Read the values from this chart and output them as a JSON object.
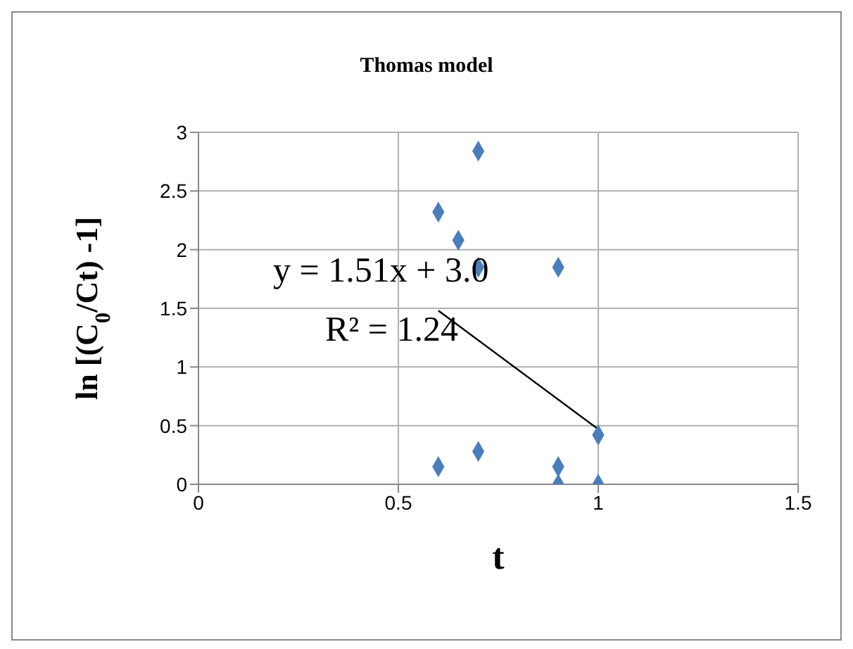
{
  "chart_data": {
    "type": "scatter",
    "title": "Thomas model",
    "xlabel": "t",
    "ylabel": "ln [(C$_{0}$/Ct) -1]",
    "annotations": [
      "y = 1.51x + 3.0",
      "R² =  1.24"
    ],
    "x": [
      0.6,
      0.65,
      0.7,
      0.7,
      0.9,
      0.6,
      0.7,
      0.9,
      0.9,
      1,
      1
    ],
    "series": [
      {
        "color": "#4a7ebb",
        "marker": "diamond",
        "values": [
          2.32,
          2.08,
          2.84,
          1.85,
          1.85,
          0.15,
          0.28,
          0.15,
          0,
          0.42,
          0
        ]
      },
      {
        "type": "line",
        "color": "#000000",
        "marker": "none",
        "x": [
          0.6,
          1
        ],
        "values": [
          1.48,
          0.47
        ]
      }
    ],
    "xlim": [
      0,
      1.5
    ],
    "xticks": [
      0,
      0.5,
      1,
      1.5
    ],
    "ylim": [
      0,
      3
    ],
    "yticks": [
      0,
      0.5,
      1,
      1.5,
      2,
      2.5,
      3
    ],
    "grid": true,
    "line_style": "solid"
  }
}
